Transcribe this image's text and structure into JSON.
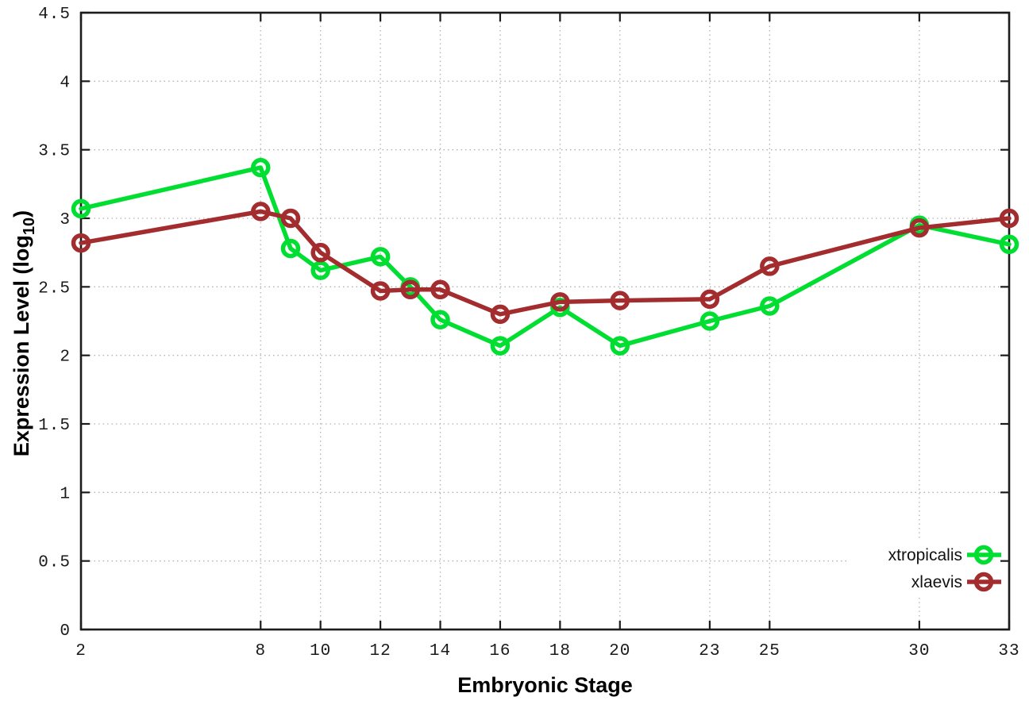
{
  "chart_data": {
    "type": "line",
    "title": "",
    "xlabel": "Embryonic Stage",
    "ylabel": "Expression Level (log10)",
    "ylabel_parts": {
      "prefix": "Expression Level (log",
      "subscript": "10",
      "suffix": ")"
    },
    "xlim": [
      2,
      33
    ],
    "ylim": [
      0,
      4.5
    ],
    "grid": true,
    "grid_style": "dotted",
    "legend_position": "inside-bottom-right",
    "x_ticks": [
      2,
      8,
      10,
      12,
      14,
      16,
      18,
      20,
      23,
      25,
      30,
      33
    ],
    "x_tick_labels": [
      "2",
      "8",
      "10",
      "12",
      "14",
      "16",
      "18",
      "20",
      "23",
      "25",
      "30",
      "33"
    ],
    "y_ticks": [
      0,
      0.5,
      1,
      1.5,
      2,
      2.5,
      3,
      3.5,
      4,
      4.5
    ],
    "y_tick_labels": [
      "0",
      "0.5",
      "1",
      "1.5",
      "2",
      "2.5",
      "3",
      "3.5",
      "4",
      "4.5"
    ],
    "series": [
      {
        "name": "xtropicalis",
        "color": "#00de32",
        "marker": "open-circle",
        "x": [
          2,
          8,
          9,
          10,
          12,
          13,
          14,
          16,
          18,
          20,
          23,
          25,
          30,
          33
        ],
        "y": [
          3.07,
          3.37,
          2.78,
          2.62,
          2.72,
          2.5,
          2.26,
          2.07,
          2.35,
          2.07,
          2.25,
          2.36,
          2.95,
          2.81
        ]
      },
      {
        "name": "xlaevis",
        "color": "#a32c2e",
        "marker": "open-circle",
        "x": [
          2,
          8,
          9,
          10,
          12,
          13,
          14,
          16,
          18,
          20,
          23,
          25,
          30,
          33
        ],
        "y": [
          2.82,
          3.05,
          3.0,
          2.75,
          2.47,
          2.48,
          2.48,
          2.3,
          2.39,
          2.4,
          2.41,
          2.65,
          2.93,
          3.0
        ]
      }
    ]
  },
  "legend": {
    "items": [
      {
        "label": "xtropicalis"
      },
      {
        "label": "xlaevis"
      }
    ]
  },
  "colors": {
    "grid": "#b2b2b2",
    "axis": "#1c1c1c",
    "text": "#000000",
    "background": "#ffffff",
    "series_green": "#00de32",
    "series_red": "#a32c2e"
  }
}
